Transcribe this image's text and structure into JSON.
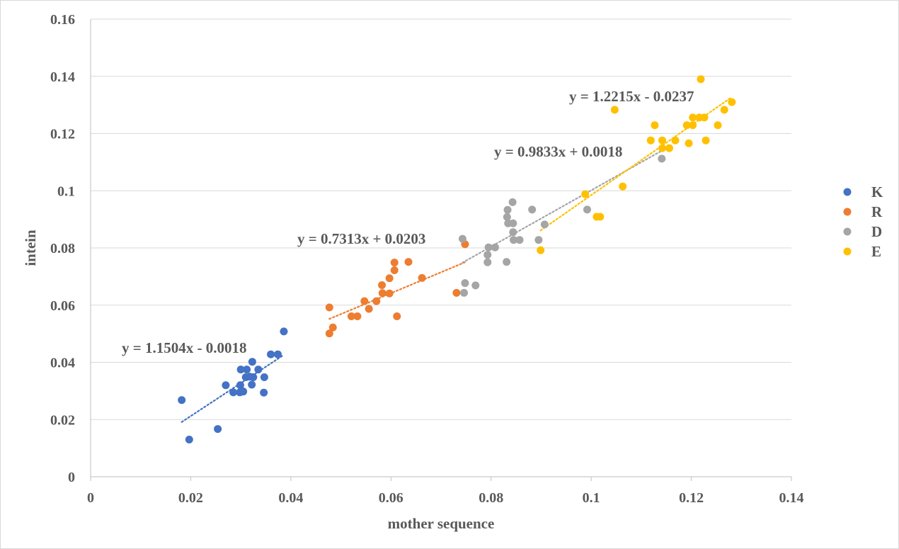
{
  "chart_data": {
    "type": "scatter",
    "xlabel": "mother sequence",
    "ylabel": "intein",
    "xlim": [
      0,
      0.14
    ],
    "ylim": [
      0,
      0.16
    ],
    "x_ticks": [
      "0",
      "0.02",
      "0.04",
      "0.06",
      "0.08",
      "0.1",
      "0.12",
      "0.14"
    ],
    "y_ticks": [
      "0",
      "0.02",
      "0.04",
      "0.06",
      "0.08",
      "0.1",
      "0.12",
      "0.14",
      "0.16"
    ],
    "grid": "horizontal",
    "legend_position": "right",
    "series": [
      {
        "name": "K",
        "color": "#4472C4",
        "trendline": {
          "equation": "y = 1.1504x - 0.0018",
          "slope": 1.1504,
          "intercept": -0.0018,
          "x_range": [
            0.0182,
            0.0386
          ]
        },
        "points": [
          [
            0.0182,
            0.0268
          ],
          [
            0.0197,
            0.013
          ],
          [
            0.0254,
            0.0167
          ],
          [
            0.027,
            0.032
          ],
          [
            0.0285,
            0.0295
          ],
          [
            0.0298,
            0.0295
          ],
          [
            0.0299,
            0.032
          ],
          [
            0.03,
            0.0375
          ],
          [
            0.0305,
            0.0298
          ],
          [
            0.031,
            0.0348
          ],
          [
            0.0312,
            0.0375
          ],
          [
            0.0318,
            0.035
          ],
          [
            0.0322,
            0.0322
          ],
          [
            0.0323,
            0.0402
          ],
          [
            0.0325,
            0.0348
          ],
          [
            0.0335,
            0.0375
          ],
          [
            0.0346,
            0.0294
          ],
          [
            0.0347,
            0.0348
          ],
          [
            0.036,
            0.0428
          ],
          [
            0.0374,
            0.0428
          ],
          [
            0.0386,
            0.0508
          ]
        ]
      },
      {
        "name": "R",
        "color": "#ED7D31",
        "trendline": {
          "equation": "y = 0.7313x + 0.0203",
          "slope": 0.7313,
          "intercept": 0.0203,
          "x_range": [
            0.0477,
            0.0748
          ]
        },
        "points": [
          [
            0.0477,
            0.0501
          ],
          [
            0.0477,
            0.0592
          ],
          [
            0.0484,
            0.0522
          ],
          [
            0.0521,
            0.0561
          ],
          [
            0.0533,
            0.0561
          ],
          [
            0.0547,
            0.0614
          ],
          [
            0.0556,
            0.0587
          ],
          [
            0.0571,
            0.0614
          ],
          [
            0.0582,
            0.067
          ],
          [
            0.0583,
            0.0642
          ],
          [
            0.0597,
            0.0694
          ],
          [
            0.0597,
            0.0641
          ],
          [
            0.0607,
            0.0722
          ],
          [
            0.0607,
            0.0749
          ],
          [
            0.0612,
            0.0561
          ],
          [
            0.0635,
            0.0751
          ],
          [
            0.0662,
            0.0695
          ],
          [
            0.0731,
            0.0643
          ],
          [
            0.0748,
            0.0813
          ]
        ]
      },
      {
        "name": "D",
        "color": "#A5A5A5",
        "trendline": {
          "equation": "y = 0.9833x + 0.0018",
          "slope": 0.9833,
          "intercept": 0.0018,
          "x_range": [
            0.0743,
            0.1141
          ]
        },
        "points": [
          [
            0.0743,
            0.0832
          ],
          [
            0.0746,
            0.0643
          ],
          [
            0.0748,
            0.0677
          ],
          [
            0.0769,
            0.0669
          ],
          [
            0.0793,
            0.075
          ],
          [
            0.0793,
            0.0776
          ],
          [
            0.0795,
            0.0802
          ],
          [
            0.0808,
            0.0802
          ],
          [
            0.0831,
            0.0751
          ],
          [
            0.0832,
            0.0908
          ],
          [
            0.0833,
            0.0933
          ],
          [
            0.0834,
            0.0886
          ],
          [
            0.0843,
            0.096
          ],
          [
            0.0844,
            0.0886
          ],
          [
            0.0844,
            0.0855
          ],
          [
            0.0845,
            0.0828
          ],
          [
            0.0857,
            0.0828
          ],
          [
            0.0882,
            0.0934
          ],
          [
            0.0895,
            0.0828
          ],
          [
            0.0907,
            0.0882
          ],
          [
            0.0992,
            0.0934
          ],
          [
            0.1141,
            0.1112
          ]
        ]
      },
      {
        "name": "E",
        "color": "#FFC000",
        "trendline": {
          "equation": "y = 1.2215x - 0.0237",
          "slope": 1.2215,
          "intercept": -0.0237,
          "x_range": [
            0.0899,
            0.1281
          ]
        },
        "points": [
          [
            0.0899,
            0.0792
          ],
          [
            0.0988,
            0.0988
          ],
          [
            0.1011,
            0.0909
          ],
          [
            0.1018,
            0.0909
          ],
          [
            0.1047,
            0.1283
          ],
          [
            0.1063,
            0.1015
          ],
          [
            0.1119,
            0.1176
          ],
          [
            0.1127,
            0.1229
          ],
          [
            0.1142,
            0.1149
          ],
          [
            0.1142,
            0.1176
          ],
          [
            0.1156,
            0.1149
          ],
          [
            0.1168,
            0.1176
          ],
          [
            0.1191,
            0.1229
          ],
          [
            0.1195,
            0.1166
          ],
          [
            0.1203,
            0.1229
          ],
          [
            0.1203,
            0.1256
          ],
          [
            0.1216,
            0.1256
          ],
          [
            0.1219,
            0.139
          ],
          [
            0.1226,
            0.1256
          ],
          [
            0.1229,
            0.1176
          ],
          [
            0.1253,
            0.1229
          ],
          [
            0.1266,
            0.1283
          ],
          [
            0.1281,
            0.131
          ]
        ]
      }
    ]
  }
}
